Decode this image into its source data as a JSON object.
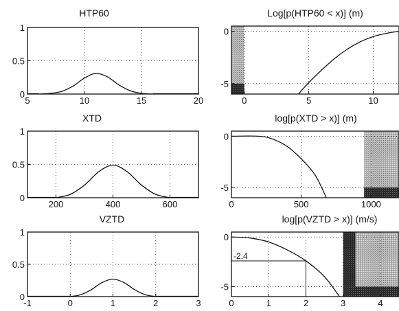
{
  "chart_data": [
    {
      "type": "area",
      "title": "HTP60",
      "xlim": [
        5,
        20
      ],
      "ylim": [
        0,
        1
      ],
      "xticks": [
        5,
        10,
        15,
        20
      ],
      "yticks": [
        0,
        0.5,
        1
      ],
      "xticklabels": [
        "5",
        "10",
        "15",
        "20"
      ],
      "yticklabels": [
        "0",
        "0.5",
        "1"
      ],
      "grid": true,
      "x": [
        6,
        7,
        8,
        9,
        10,
        11,
        12,
        13,
        14,
        15,
        16
      ],
      "y": [
        0,
        0.01,
        0.04,
        0.12,
        0.24,
        0.31,
        0.26,
        0.14,
        0.05,
        0.01,
        0
      ]
    },
    {
      "type": "line",
      "title": "Log[p(HTP60 < x)] (m)",
      "xlim": [
        -1,
        12
      ],
      "ylim": [
        -6,
        0.5
      ],
      "xticks": [
        0,
        5,
        10
      ],
      "yticks": [
        -5,
        0
      ],
      "xticklabels": [
        "0",
        "5",
        "10"
      ],
      "yticklabels": [
        "-5",
        "0"
      ],
      "grid": true,
      "x": [
        4.2,
        5,
        6,
        7,
        8,
        9,
        10,
        11,
        12
      ],
      "y": [
        -6,
        -4.9,
        -3.7,
        -2.6,
        -1.7,
        -1.0,
        -0.5,
        -0.2,
        0
      ],
      "region_x": [
        -1,
        0
      ]
    },
    {
      "type": "area",
      "title": "XTD",
      "xlim": [
        100,
        700
      ],
      "ylim": [
        0,
        1
      ],
      "xticks": [
        200,
        400,
        600
      ],
      "yticks": [
        0,
        0.5,
        1
      ],
      "xticklabels": [
        "200",
        "400",
        "600"
      ],
      "yticklabels": [
        "0",
        "0.5",
        "1"
      ],
      "grid": true,
      "x": [
        200,
        250,
        300,
        350,
        400,
        450,
        500,
        550,
        600
      ],
      "y": [
        0,
        0.05,
        0.19,
        0.39,
        0.49,
        0.39,
        0.19,
        0.05,
        0
      ]
    },
    {
      "type": "line",
      "title": "log[p(XTD > x)] (m)",
      "xlim": [
        0,
        1200
      ],
      "ylim": [
        -6,
        0.5
      ],
      "xticks": [
        0,
        500,
        1000
      ],
      "yticks": [
        -5,
        0
      ],
      "xticklabels": [
        "0",
        "500",
        "1000"
      ],
      "yticklabels": [
        "-5",
        "0"
      ],
      "grid": true,
      "x": [
        0,
        200,
        300,
        400,
        500,
        600,
        680
      ],
      "y": [
        0,
        0,
        -0.3,
        -1.0,
        -2.2,
        -3.8,
        -6
      ],
      "region_x": [
        950,
        1200
      ]
    },
    {
      "type": "area",
      "title": "VZTD",
      "xlim": [
        -1,
        3
      ],
      "ylim": [
        0,
        1
      ],
      "xticks": [
        -1,
        0,
        1,
        2,
        3
      ],
      "yticks": [
        0,
        0.5,
        1
      ],
      "xticklabels": [
        "-1",
        "0",
        "1",
        "2",
        "3"
      ],
      "yticklabels": [
        "0",
        "0.5",
        "1"
      ],
      "grid": true,
      "x": [
        0,
        0.25,
        0.5,
        0.75,
        1,
        1.25,
        1.5,
        1.75,
        2
      ],
      "y": [
        0,
        0.03,
        0.11,
        0.22,
        0.27,
        0.22,
        0.11,
        0.03,
        0
      ]
    },
    {
      "type": "line",
      "title": "log[p(VZTD > x)] (m/s)",
      "xlim": [
        0,
        4.5
      ],
      "ylim": [
        -6,
        0.5
      ],
      "xticks": [
        0,
        1,
        2,
        3,
        4
      ],
      "yticks": [
        -5,
        0
      ],
      "xticklabels": [
        "0",
        "1",
        "2",
        "3",
        "4"
      ],
      "yticklabels": [
        "-5",
        "0"
      ],
      "grid": true,
      "x": [
        0,
        0.5,
        1,
        1.5,
        2,
        2.5,
        2.9
      ],
      "y": [
        0,
        -0.1,
        -0.5,
        -1.3,
        -2.4,
        -4.0,
        -6
      ],
      "region_x": [
        3.0,
        4.5
      ],
      "annotation": {
        "text": "-2.4",
        "x": 2.0,
        "y": -2.4
      }
    }
  ]
}
